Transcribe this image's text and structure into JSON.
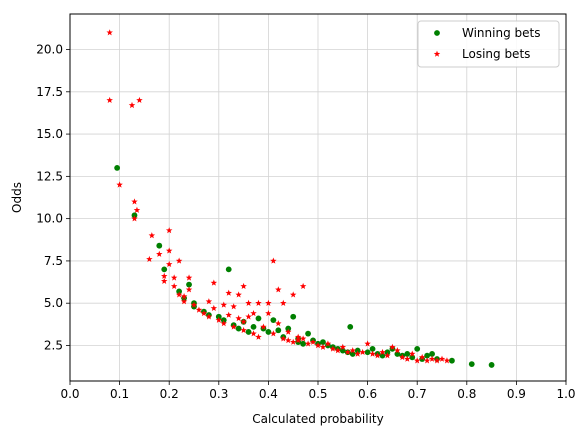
{
  "chart_data": {
    "type": "scatter",
    "xlabel": "Calculated probability",
    "ylabel": "Odds",
    "xlim": [
      0.0,
      1.0
    ],
    "ylim": [
      0.4,
      22.1
    ],
    "x_ticks": [
      0.0,
      0.1,
      0.2,
      0.3,
      0.4,
      0.5,
      0.6,
      0.7,
      0.8,
      0.9,
      1.0
    ],
    "x_tick_labels": [
      "0.0",
      "0.1",
      "0.2",
      "0.3",
      "0.4",
      "0.5",
      "0.6",
      "0.7",
      "0.8",
      "0.9",
      "1.0"
    ],
    "y_ticks": [
      2.5,
      5.0,
      7.5,
      10.0,
      12.5,
      15.0,
      17.5,
      20.0
    ],
    "y_tick_labels": [
      "2.5",
      "5.0",
      "7.5",
      "10.0",
      "12.5",
      "15.0",
      "17.5",
      "20.0"
    ],
    "grid": true,
    "legend_position": "top-right",
    "series": [
      {
        "name": "Winning bets",
        "marker": "circle",
        "color": "#008000",
        "points": [
          [
            0.095,
            13.0
          ],
          [
            0.13,
            10.2
          ],
          [
            0.18,
            8.4
          ],
          [
            0.19,
            7.0
          ],
          [
            0.22,
            5.7
          ],
          [
            0.23,
            5.3
          ],
          [
            0.24,
            6.1
          ],
          [
            0.25,
            5.0
          ],
          [
            0.25,
            4.8
          ],
          [
            0.27,
            4.5
          ],
          [
            0.28,
            4.3
          ],
          [
            0.3,
            4.2
          ],
          [
            0.31,
            4.0
          ],
          [
            0.32,
            7.0
          ],
          [
            0.33,
            3.7
          ],
          [
            0.34,
            3.5
          ],
          [
            0.35,
            3.9
          ],
          [
            0.36,
            3.3
          ],
          [
            0.37,
            3.6
          ],
          [
            0.38,
            4.1
          ],
          [
            0.39,
            3.5
          ],
          [
            0.4,
            3.3
          ],
          [
            0.41,
            4.0
          ],
          [
            0.42,
            3.4
          ],
          [
            0.43,
            3.0
          ],
          [
            0.44,
            3.5
          ],
          [
            0.45,
            4.2
          ],
          [
            0.46,
            2.9
          ],
          [
            0.46,
            2.7
          ],
          [
            0.47,
            2.6
          ],
          [
            0.48,
            3.2
          ],
          [
            0.49,
            2.8
          ],
          [
            0.5,
            2.6
          ],
          [
            0.51,
            2.7
          ],
          [
            0.52,
            2.5
          ],
          [
            0.53,
            2.4
          ],
          [
            0.54,
            2.3
          ],
          [
            0.55,
            2.2
          ],
          [
            0.56,
            2.1
          ],
          [
            0.565,
            3.6
          ],
          [
            0.57,
            2.0
          ],
          [
            0.58,
            2.2
          ],
          [
            0.6,
            2.1
          ],
          [
            0.61,
            2.3
          ],
          [
            0.62,
            2.0
          ],
          [
            0.63,
            1.9
          ],
          [
            0.64,
            2.1
          ],
          [
            0.65,
            2.3
          ],
          [
            0.66,
            2.0
          ],
          [
            0.67,
            1.9
          ],
          [
            0.68,
            2.0
          ],
          [
            0.69,
            1.8
          ],
          [
            0.7,
            2.3
          ],
          [
            0.71,
            1.7
          ],
          [
            0.72,
            1.9
          ],
          [
            0.73,
            2.0
          ],
          [
            0.74,
            1.7
          ],
          [
            0.77,
            1.6
          ],
          [
            0.81,
            1.4
          ],
          [
            0.85,
            1.35
          ]
        ]
      },
      {
        "name": "Losing bets",
        "marker": "star",
        "color": "#ff0000",
        "points": [
          [
            0.08,
            21.0
          ],
          [
            0.08,
            17.0
          ],
          [
            0.125,
            16.7
          ],
          [
            0.14,
            17.0
          ],
          [
            0.1,
            12.0
          ],
          [
            0.13,
            11.0
          ],
          [
            0.13,
            10.0
          ],
          [
            0.135,
            10.5
          ],
          [
            0.165,
            9.0
          ],
          [
            0.16,
            7.6
          ],
          [
            0.18,
            7.9
          ],
          [
            0.19,
            6.6
          ],
          [
            0.19,
            6.3
          ],
          [
            0.2,
            9.3
          ],
          [
            0.2,
            8.1
          ],
          [
            0.2,
            7.3
          ],
          [
            0.21,
            6.5
          ],
          [
            0.21,
            6.0
          ],
          [
            0.22,
            7.5
          ],
          [
            0.22,
            5.5
          ],
          [
            0.23,
            5.4
          ],
          [
            0.23,
            5.1
          ],
          [
            0.24,
            6.5
          ],
          [
            0.24,
            5.8
          ],
          [
            0.25,
            4.9
          ],
          [
            0.26,
            4.6
          ],
          [
            0.27,
            4.4
          ],
          [
            0.28,
            5.1
          ],
          [
            0.28,
            4.2
          ],
          [
            0.29,
            6.2
          ],
          [
            0.29,
            4.7
          ],
          [
            0.3,
            4.0
          ],
          [
            0.31,
            4.9
          ],
          [
            0.31,
            3.8
          ],
          [
            0.32,
            5.6
          ],
          [
            0.32,
            4.3
          ],
          [
            0.33,
            3.6
          ],
          [
            0.33,
            4.8
          ],
          [
            0.34,
            5.5
          ],
          [
            0.34,
            4.1
          ],
          [
            0.35,
            6.0
          ],
          [
            0.35,
            3.4
          ],
          [
            0.35,
            3.9
          ],
          [
            0.36,
            4.2
          ],
          [
            0.36,
            5.0
          ],
          [
            0.37,
            3.2
          ],
          [
            0.37,
            4.4
          ],
          [
            0.38,
            3.0
          ],
          [
            0.38,
            5.0
          ],
          [
            0.39,
            3.6
          ],
          [
            0.4,
            5.0
          ],
          [
            0.4,
            4.4
          ],
          [
            0.41,
            7.5
          ],
          [
            0.41,
            3.2
          ],
          [
            0.42,
            5.8
          ],
          [
            0.42,
            3.8
          ],
          [
            0.43,
            2.9
          ],
          [
            0.43,
            5.0
          ],
          [
            0.44,
            3.3
          ],
          [
            0.44,
            2.8
          ],
          [
            0.45,
            5.5
          ],
          [
            0.45,
            2.7
          ],
          [
            0.46,
            3.0
          ],
          [
            0.46,
            2.8
          ],
          [
            0.47,
            6.0
          ],
          [
            0.47,
            2.9
          ],
          [
            0.48,
            2.6
          ],
          [
            0.49,
            2.7
          ],
          [
            0.5,
            2.5
          ],
          [
            0.51,
            2.4
          ],
          [
            0.52,
            2.6
          ],
          [
            0.53,
            2.3
          ],
          [
            0.54,
            2.2
          ],
          [
            0.55,
            2.4
          ],
          [
            0.56,
            2.1
          ],
          [
            0.57,
            2.2
          ],
          [
            0.58,
            2.0
          ],
          [
            0.59,
            2.1
          ],
          [
            0.6,
            2.6
          ],
          [
            0.61,
            2.0
          ],
          [
            0.62,
            1.9
          ],
          [
            0.63,
            2.1
          ],
          [
            0.64,
            1.9
          ],
          [
            0.65,
            2.4
          ],
          [
            0.66,
            2.2
          ],
          [
            0.67,
            1.8
          ],
          [
            0.68,
            1.7
          ],
          [
            0.69,
            2.0
          ],
          [
            0.7,
            1.6
          ],
          [
            0.71,
            1.8
          ],
          [
            0.72,
            1.6
          ],
          [
            0.73,
            1.7
          ],
          [
            0.74,
            1.6
          ],
          [
            0.75,
            1.7
          ],
          [
            0.76,
            1.6
          ]
        ]
      }
    ]
  }
}
